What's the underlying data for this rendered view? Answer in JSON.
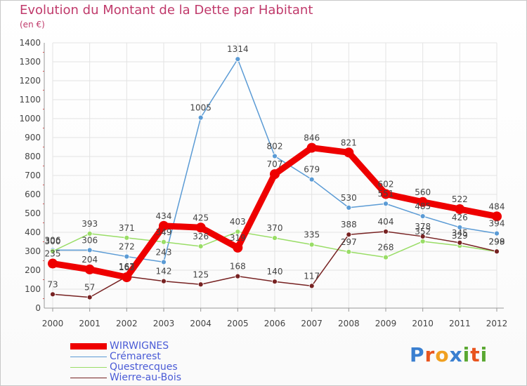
{
  "title": "Evolution du Montant de la Dette par Habitant",
  "subtitle": "(en €)",
  "logo_text": "Proxiti",
  "colors": {
    "title": "#c03a6b",
    "grid": "#e3e3e3",
    "axis": "#999999"
  },
  "chart_data": {
    "type": "line",
    "categories": [
      "2000",
      "2001",
      "2002",
      "2003",
      "2004",
      "2005",
      "2006",
      "2007",
      "2008",
      "2009",
      "2010",
      "2011",
      "2012"
    ],
    "ylim": [
      0,
      1400
    ],
    "yticks": [
      0,
      100,
      200,
      300,
      400,
      500,
      600,
      700,
      800,
      900,
      1000,
      1100,
      1200,
      1300,
      1400
    ],
    "grid": true,
    "legend_position": "bottom-left",
    "series": [
      {
        "name": "WIRWIGNES",
        "color": "#ee0000",
        "values": [
          235,
          204,
          163,
          434,
          425,
          319,
          707,
          846,
          821,
          602,
          560,
          522,
          484
        ],
        "labels": [
          "235",
          "204",
          "163",
          "434",
          "425",
          "319",
          "707",
          "846",
          "821",
          "602",
          "560",
          "522",
          "484"
        ]
      },
      {
        "name": "Crémarest",
        "color": "#5b9bd5",
        "values": [
          306,
          306,
          272,
          243,
          1005,
          1314,
          802,
          679,
          530,
          551,
          485,
          426,
          394
        ],
        "labels": [
          "306",
          "306",
          "272",
          "243",
          "1005",
          "1314",
          "802",
          "679",
          "530",
          "551",
          "485",
          "426",
          "394"
        ]
      },
      {
        "name": "Questrecques",
        "color": "#99dd66",
        "values": [
          300,
          393,
          371,
          349,
          326,
          403,
          370,
          335,
          297,
          268,
          352,
          329,
          298
        ],
        "labels": [
          "300",
          "393",
          "371",
          "349",
          "326",
          "403",
          "370",
          "335",
          "297",
          "268",
          "352",
          "329",
          "298"
        ]
      },
      {
        "name": "Wierre-au-Bois",
        "color": "#772222",
        "values": [
          73,
          57,
          167,
          142,
          125,
          168,
          140,
          117,
          388,
          404,
          378,
          345,
          299
        ],
        "labels": [
          "73",
          "57",
          "167",
          "142",
          "125",
          "168",
          "140",
          "117",
          "388",
          "404",
          "378",
          "345",
          "299"
        ]
      }
    ]
  }
}
